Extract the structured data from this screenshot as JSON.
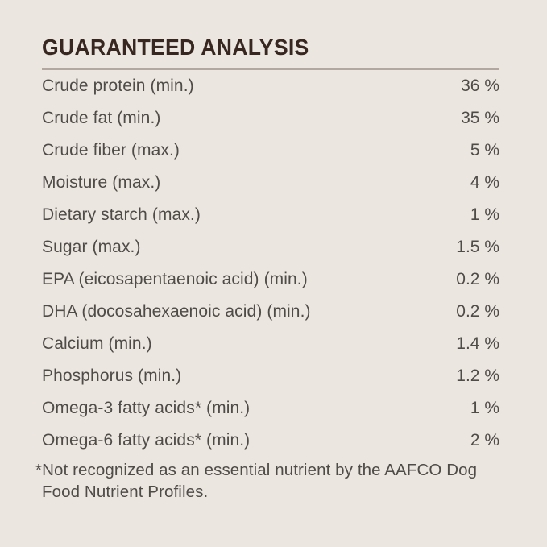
{
  "panel": {
    "title": "GUARANTEED ANALYSIS",
    "rows": [
      {
        "label": "Crude protein (min.)",
        "value": "36 %"
      },
      {
        "label": "Crude fat (min.)",
        "value": "35 %"
      },
      {
        "label": "Crude fiber (max.)",
        "value": "5 %"
      },
      {
        "label": "Moisture (max.)",
        "value": "4 %"
      },
      {
        "label": "Dietary starch (max.)",
        "value": "1 %"
      },
      {
        "label": "Sugar (max.)",
        "value": "1.5 %"
      },
      {
        "label": "EPA (eicosapentaenoic acid) (min.)",
        "value": "0.2 %"
      },
      {
        "label": "DHA (docosahexaenoic acid) (min.)",
        "value": "0.2 %"
      },
      {
        "label": "Calcium (min.)",
        "value": "1.4 %"
      },
      {
        "label": "Phosphorus (min.)",
        "value": "1.2 %"
      },
      {
        "label": "Omega-3 fatty acids* (min.)",
        "value": "1 %"
      },
      {
        "label": "Omega-6 fatty acids* (min.)",
        "value": "2 %"
      }
    ],
    "footnote": "*Not recognized as an essential nutrient by the AAFCO Dog Food Nutrient Profiles.",
    "colors": {
      "background": "#ECE6E1",
      "title": "#372720",
      "divider": "#B2A8A0",
      "text": "#4F4B47"
    }
  }
}
